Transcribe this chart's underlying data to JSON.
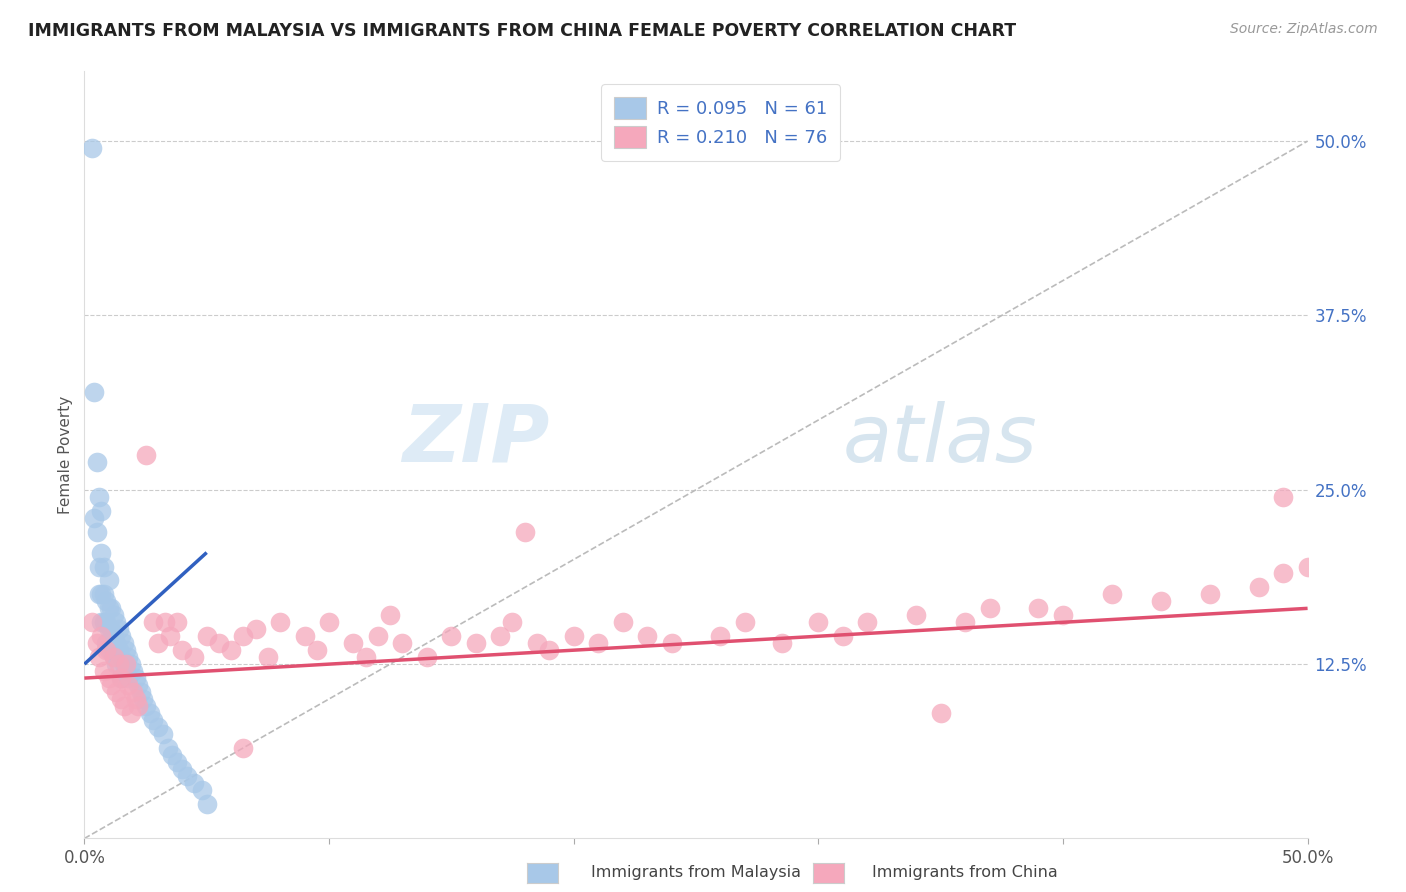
{
  "title": "IMMIGRANTS FROM MALAYSIA VS IMMIGRANTS FROM CHINA FEMALE POVERTY CORRELATION CHART",
  "source_text": "Source: ZipAtlas.com",
  "ylabel": "Female Poverty",
  "x_min": 0.0,
  "x_max": 0.5,
  "y_min": 0.0,
  "y_max": 0.55,
  "legend_r1": "R = 0.095",
  "legend_n1": "N = 61",
  "legend_r2": "R = 0.210",
  "legend_n2": "N = 76",
  "color_malaysia": "#a8c8e8",
  "color_china": "#f5a8bc",
  "color_malaysia_line": "#3060c0",
  "color_china_line": "#e05070",
  "background_color": "#ffffff",
  "grid_color": "#cccccc",
  "y_ticks_right": [
    0.5,
    0.375,
    0.25,
    0.125,
    0.0
  ],
  "y_tick_labels_right": [
    "50.0%",
    "37.5%",
    "25.0%",
    "12.5%",
    ""
  ],
  "malaysia_x": [
    0.003,
    0.004,
    0.004,
    0.005,
    0.005,
    0.006,
    0.006,
    0.006,
    0.007,
    0.007,
    0.007,
    0.007,
    0.008,
    0.008,
    0.008,
    0.009,
    0.009,
    0.009,
    0.01,
    0.01,
    0.01,
    0.01,
    0.011,
    0.011,
    0.011,
    0.012,
    0.012,
    0.012,
    0.013,
    0.013,
    0.013,
    0.014,
    0.014,
    0.015,
    0.015,
    0.015,
    0.016,
    0.016,
    0.017,
    0.017,
    0.018,
    0.018,
    0.019,
    0.02,
    0.021,
    0.022,
    0.023,
    0.024,
    0.025,
    0.027,
    0.028,
    0.03,
    0.032,
    0.034,
    0.036,
    0.038,
    0.04,
    0.042,
    0.045,
    0.048,
    0.05
  ],
  "malaysia_y": [
    0.495,
    0.32,
    0.23,
    0.27,
    0.22,
    0.245,
    0.195,
    0.175,
    0.235,
    0.205,
    0.175,
    0.155,
    0.195,
    0.175,
    0.155,
    0.17,
    0.155,
    0.14,
    0.185,
    0.165,
    0.15,
    0.135,
    0.165,
    0.15,
    0.135,
    0.16,
    0.145,
    0.13,
    0.155,
    0.14,
    0.125,
    0.15,
    0.135,
    0.145,
    0.13,
    0.115,
    0.14,
    0.125,
    0.135,
    0.12,
    0.13,
    0.115,
    0.125,
    0.12,
    0.115,
    0.11,
    0.105,
    0.1,
    0.095,
    0.09,
    0.085,
    0.08,
    0.075,
    0.065,
    0.06,
    0.055,
    0.05,
    0.045,
    0.04,
    0.035,
    0.025
  ],
  "china_x": [
    0.003,
    0.005,
    0.006,
    0.007,
    0.008,
    0.009,
    0.01,
    0.011,
    0.012,
    0.013,
    0.014,
    0.015,
    0.015,
    0.016,
    0.017,
    0.018,
    0.019,
    0.02,
    0.021,
    0.022,
    0.025,
    0.028,
    0.03,
    0.033,
    0.035,
    0.038,
    0.04,
    0.045,
    0.05,
    0.055,
    0.06,
    0.065,
    0.07,
    0.075,
    0.08,
    0.09,
    0.095,
    0.1,
    0.11,
    0.115,
    0.12,
    0.125,
    0.13,
    0.14,
    0.15,
    0.16,
    0.17,
    0.175,
    0.185,
    0.19,
    0.2,
    0.21,
    0.22,
    0.23,
    0.24,
    0.26,
    0.27,
    0.285,
    0.3,
    0.31,
    0.32,
    0.34,
    0.36,
    0.37,
    0.39,
    0.4,
    0.42,
    0.44,
    0.46,
    0.48,
    0.49,
    0.5,
    0.065,
    0.18,
    0.35,
    0.49
  ],
  "china_y": [
    0.155,
    0.14,
    0.13,
    0.145,
    0.12,
    0.135,
    0.115,
    0.11,
    0.13,
    0.105,
    0.125,
    0.1,
    0.115,
    0.095,
    0.125,
    0.11,
    0.09,
    0.105,
    0.1,
    0.095,
    0.275,
    0.155,
    0.14,
    0.155,
    0.145,
    0.155,
    0.135,
    0.13,
    0.145,
    0.14,
    0.135,
    0.145,
    0.15,
    0.13,
    0.155,
    0.145,
    0.135,
    0.155,
    0.14,
    0.13,
    0.145,
    0.16,
    0.14,
    0.13,
    0.145,
    0.14,
    0.145,
    0.155,
    0.14,
    0.135,
    0.145,
    0.14,
    0.155,
    0.145,
    0.14,
    0.145,
    0.155,
    0.14,
    0.155,
    0.145,
    0.155,
    0.16,
    0.155,
    0.165,
    0.165,
    0.16,
    0.175,
    0.17,
    0.175,
    0.18,
    0.19,
    0.195,
    0.065,
    0.22,
    0.09,
    0.245
  ],
  "malaysia_trend_x": [
    0.0,
    0.05
  ],
  "malaysia_trend_y": [
    0.125,
    0.205
  ],
  "china_trend_x": [
    0.0,
    0.5
  ],
  "china_trend_y": [
    0.115,
    0.165
  ]
}
